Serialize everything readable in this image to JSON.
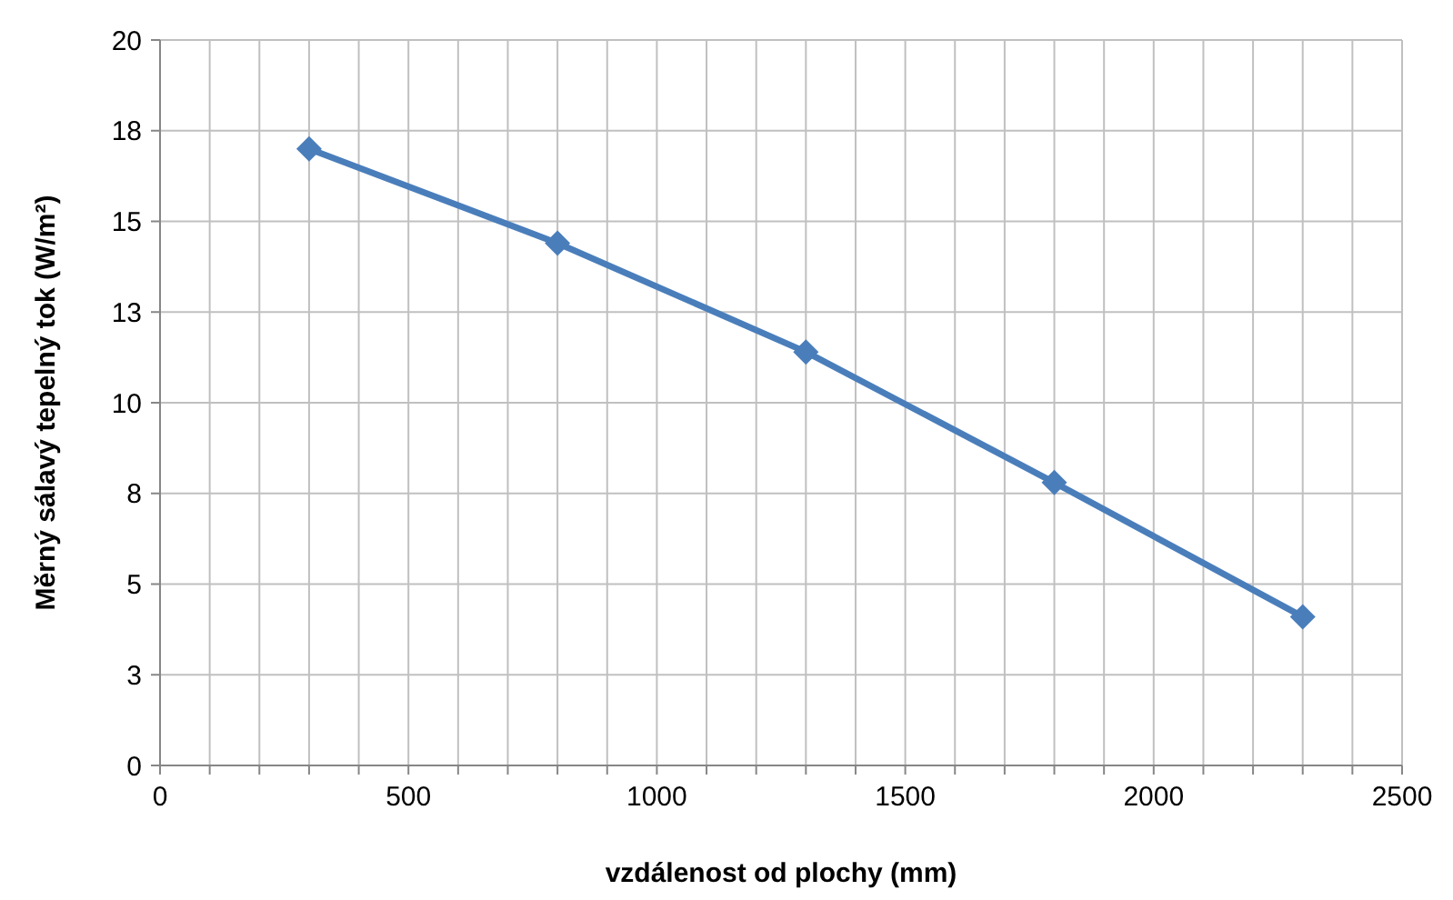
{
  "chart_data": {
    "type": "line",
    "xlabel": "vzdálenost od plochy (mm)",
    "ylabel": "Měrný sálavý tepelný tok (W/m²)",
    "x": [
      300,
      800,
      1300,
      1800,
      2300
    ],
    "series": [
      {
        "color": "#4a7ebb",
        "values": [
          17.0,
          14.4,
          11.4,
          7.8,
          4.1
        ]
      }
    ],
    "xlim": [
      0,
      2500
    ],
    "xticks": [
      0,
      {
        "value": 100,
        "label": null
      },
      {
        "value": 200,
        "label": null
      },
      {
        "value": 300,
        "label": null
      },
      {
        "value": 400,
        "label": null
      },
      500,
      {
        "value": 600,
        "label": null
      },
      {
        "value": 700,
        "label": null
      },
      {
        "value": 800,
        "label": null
      },
      {
        "value": 900,
        "label": null
      },
      1000,
      {
        "value": 1100,
        "label": null
      },
      {
        "value": 1200,
        "label": null
      },
      {
        "value": 1300,
        "label": null
      },
      {
        "value": 1400,
        "label": null
      },
      1500,
      {
        "value": 1600,
        "label": null
      },
      {
        "value": 1700,
        "label": null
      },
      {
        "value": 1800,
        "label": null
      },
      {
        "value": 1900,
        "label": null
      },
      2000,
      {
        "value": 2100,
        "label": null
      },
      {
        "value": 2200,
        "label": null
      },
      {
        "value": 2300,
        "label": null
      },
      {
        "value": 2400,
        "label": null
      },
      2500
    ],
    "ylim": [
      0,
      20
    ],
    "yticks": [
      0,
      {
        "value": 2.5,
        "label": "3"
      },
      5,
      {
        "value": 7.5,
        "label": "8"
      },
      10,
      {
        "value": 12.5,
        "label": "13"
      },
      15,
      {
        "value": 17.5,
        "label": "18"
      },
      20
    ],
    "grid": true,
    "marker": "diamond",
    "line_style": "solid"
  }
}
